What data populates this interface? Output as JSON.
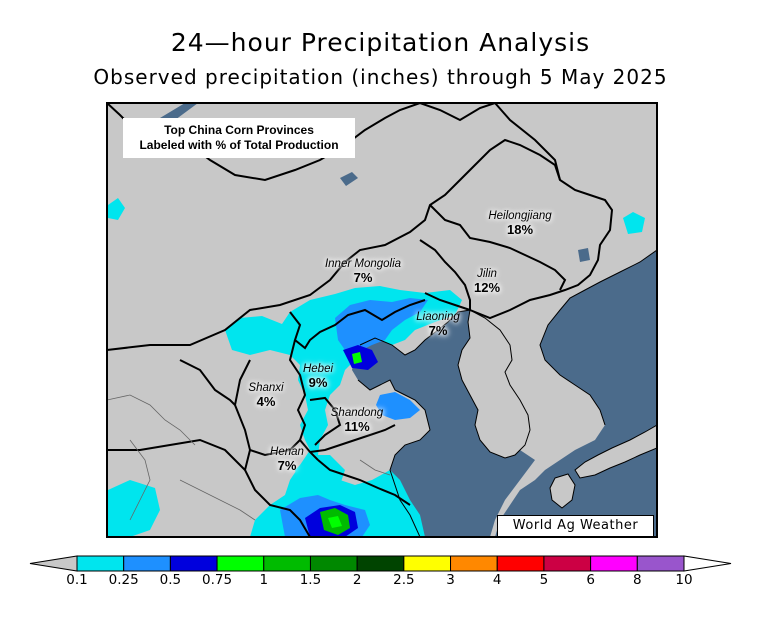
{
  "title": "24—hour Precipitation Analysis",
  "subtitle": "Observed precipitation (inches) through 5 May 2025",
  "info_box": {
    "line1": "Top China Corn Provinces",
    "line2": "Labeled with % of Total Production"
  },
  "credit": "World Ag Weather",
  "provinces": [
    {
      "name": "Heilongjiang",
      "pct": "18%"
    },
    {
      "name": "Jilin",
      "pct": "12%"
    },
    {
      "name": "Inner Mongolia",
      "pct": "7%"
    },
    {
      "name": "Liaoning",
      "pct": "7%"
    },
    {
      "name": "Hebei",
      "pct": "9%"
    },
    {
      "name": "Shanxi",
      "pct": "4%"
    },
    {
      "name": "Shandong",
      "pct": "11%"
    },
    {
      "name": "Henan",
      "pct": "7%"
    }
  ],
  "colorbar": {
    "ticks": [
      "0.1",
      "0.25",
      "0.5",
      "0.75",
      "1",
      "1.5",
      "2",
      "2.5",
      "3",
      "4",
      "5",
      "6",
      "8",
      "10"
    ],
    "colors": [
      "#00e5ee",
      "#1e90ff",
      "#0000dd",
      "#00ff00",
      "#00bb00",
      "#008800",
      "#004400",
      "#ffff00",
      "#ff8800",
      "#ff0000",
      "#cc0044",
      "#ff00ff",
      "#9955cc"
    ]
  },
  "colors": {
    "land": "#c8c8c8",
    "water": "#4b6b8b",
    "border": "#000000"
  }
}
